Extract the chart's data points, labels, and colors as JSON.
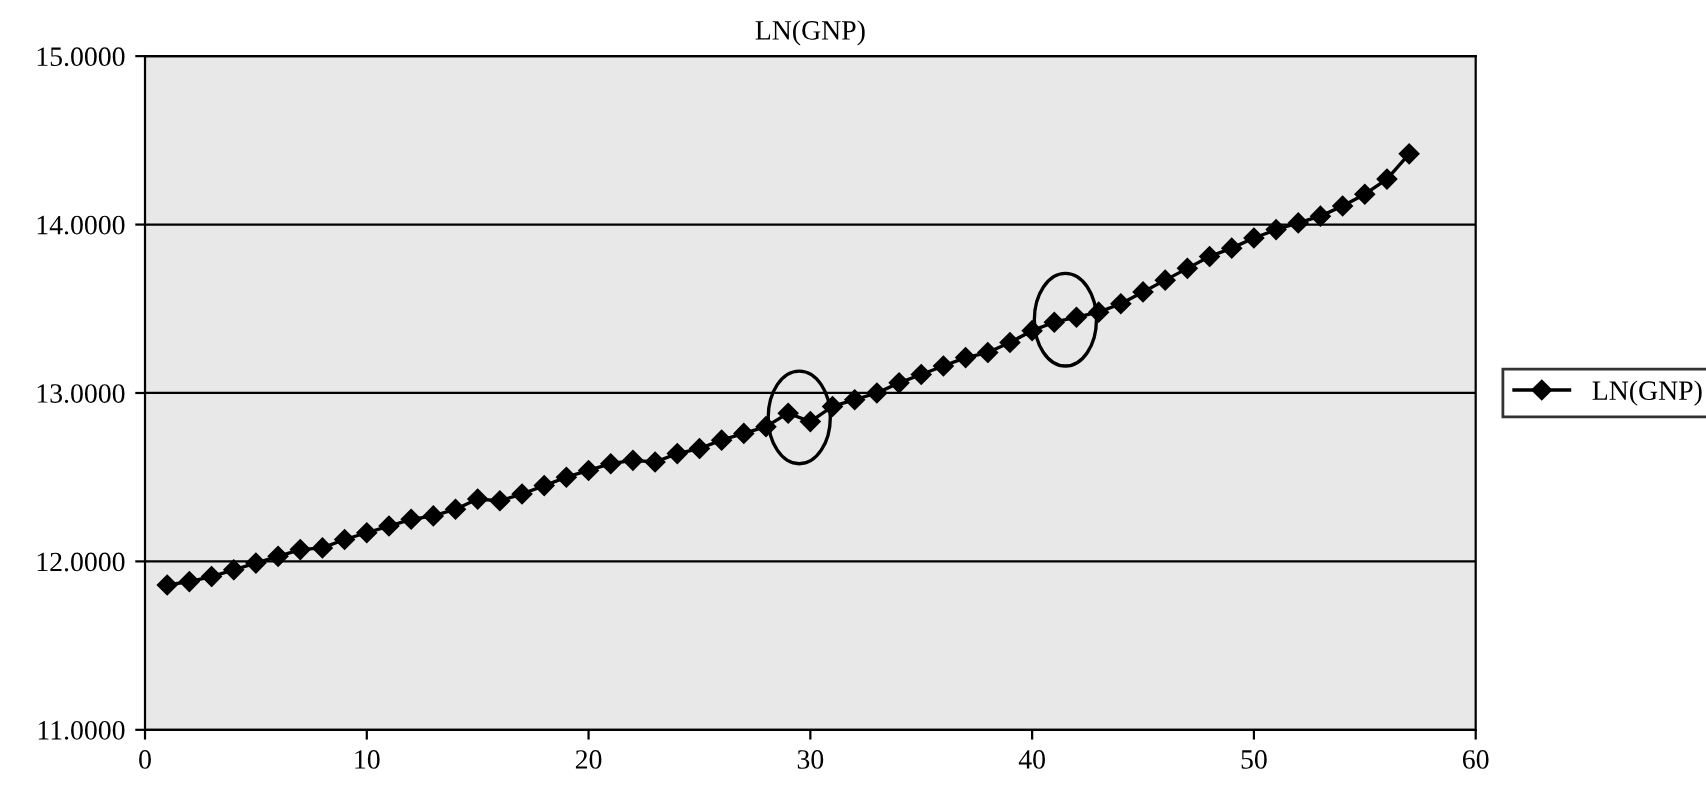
{
  "chart_data": {
    "type": "line",
    "title": "LN(GNP)",
    "x": [
      1,
      2,
      3,
      4,
      5,
      6,
      7,
      8,
      9,
      10,
      11,
      12,
      13,
      14,
      15,
      16,
      17,
      18,
      19,
      20,
      21,
      22,
      23,
      24,
      25,
      26,
      27,
      28,
      29,
      30,
      31,
      32,
      33,
      34,
      35,
      36,
      37,
      38,
      39,
      40,
      41,
      42,
      43,
      44,
      45,
      46,
      47,
      48,
      49,
      50,
      51,
      52,
      53,
      54,
      55,
      56,
      57
    ],
    "series": [
      {
        "name": "LN(GNP)",
        "color": "#000000",
        "values": [
          11.86,
          11.88,
          11.91,
          11.95,
          11.99,
          12.03,
          12.07,
          12.08,
          12.13,
          12.17,
          12.21,
          12.25,
          12.27,
          12.31,
          12.37,
          12.36,
          12.4,
          12.45,
          12.5,
          12.54,
          12.58,
          12.6,
          12.59,
          12.64,
          12.67,
          12.72,
          12.76,
          12.8,
          12.88,
          12.83,
          12.92,
          12.96,
          13.0,
          13.06,
          13.11,
          13.16,
          13.21,
          13.24,
          13.3,
          13.37,
          13.42,
          13.45,
          13.48,
          13.53,
          13.6,
          13.67,
          13.74,
          13.81,
          13.86,
          13.92,
          13.97,
          14.01,
          14.05,
          14.11,
          14.18,
          14.27,
          14.42
        ]
      }
    ],
    "xlim": [
      0,
      60
    ],
    "xticks": [
      0,
      10,
      20,
      30,
      40,
      50,
      60
    ],
    "ylim": [
      11,
      15
    ],
    "yticks": [
      {
        "value": 11,
        "label": "11.0000"
      },
      {
        "value": 12,
        "label": "12.0000"
      },
      {
        "value": 13,
        "label": "13.0000"
      },
      {
        "value": 14,
        "label": "14.0000"
      },
      {
        "value": 15,
        "label": "15.0000"
      }
    ],
    "grid": "y",
    "legend": "right",
    "marker": "diamond",
    "line_style": "solid"
  }
}
